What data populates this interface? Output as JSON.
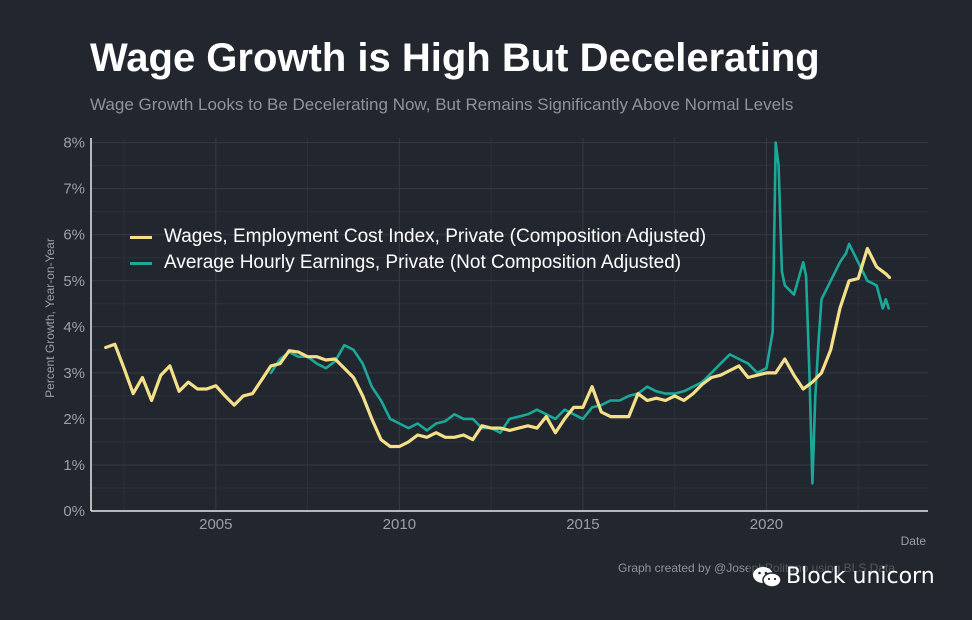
{
  "title": "Wage Growth is High But Decelerating",
  "subtitle": "Wage Growth Looks to Be Decelerating Now, But Remains Significantly Above Normal Levels",
  "credit": "Graph created by @JosephPolitano using BLS Data",
  "watermark": "Block unicorn",
  "colors": {
    "background": "#22262e",
    "eci": "#f5e08a",
    "ahe": "#1aa898",
    "grid": "#353a43",
    "axis": "#e8e8e8"
  },
  "chart_data": {
    "type": "line",
    "title": "Wage Growth is High But Decelerating",
    "xlabel": "Date",
    "ylabel": "Percent Growth, Year-on-Year",
    "xlim": [
      2001.6,
      2024.4
    ],
    "ylim": [
      0,
      8.1
    ],
    "x_ticks": [
      2005,
      2010,
      2015,
      2020
    ],
    "x_tick_labels": [
      "2005",
      "2010",
      "2015",
      "2020"
    ],
    "y_ticks": [
      0,
      1,
      2,
      3,
      4,
      5,
      6,
      7,
      8
    ],
    "y_tick_labels": [
      "0%",
      "1%",
      "2%",
      "3%",
      "4%",
      "5%",
      "6%",
      "7%",
      "8%"
    ],
    "legend_position": "upper-left",
    "series": [
      {
        "name": "Wages, Employment Cost Index, Private (Composition Adjusted)",
        "color": "#f5e08a",
        "x": [
          2002.0,
          2002.25,
          2002.5,
          2002.75,
          2003.0,
          2003.25,
          2003.5,
          2003.75,
          2004.0,
          2004.25,
          2004.5,
          2004.75,
          2005.0,
          2005.25,
          2005.5,
          2005.75,
          2006.0,
          2006.25,
          2006.5,
          2006.75,
          2007.0,
          2007.25,
          2007.5,
          2007.75,
          2008.0,
          2008.25,
          2008.5,
          2008.75,
          2009.0,
          2009.25,
          2009.5,
          2009.75,
          2010.0,
          2010.25,
          2010.5,
          2010.75,
          2011.0,
          2011.25,
          2011.5,
          2011.75,
          2012.0,
          2012.25,
          2012.5,
          2012.75,
          2013.0,
          2013.25,
          2013.5,
          2013.75,
          2014.0,
          2014.25,
          2014.5,
          2014.75,
          2015.0,
          2015.25,
          2015.5,
          2015.75,
          2016.0,
          2016.25,
          2016.5,
          2016.75,
          2017.0,
          2017.25,
          2017.5,
          2017.75,
          2018.0,
          2018.25,
          2018.5,
          2018.75,
          2019.0,
          2019.25,
          2019.5,
          2019.75,
          2020.0,
          2020.25,
          2020.5,
          2020.75,
          2021.0,
          2021.25,
          2021.5,
          2021.75,
          2022.0,
          2022.25,
          2022.5,
          2022.75,
          2023.0,
          2023.25
        ],
        "values": [
          3.55,
          3.62,
          3.1,
          2.55,
          2.9,
          2.4,
          2.95,
          3.15,
          2.6,
          2.8,
          2.65,
          2.65,
          2.72,
          2.5,
          2.3,
          2.5,
          2.55,
          2.85,
          3.15,
          3.2,
          3.48,
          3.45,
          3.35,
          3.35,
          3.28,
          3.3,
          3.1,
          2.9,
          2.5,
          2.0,
          1.55,
          1.4,
          1.4,
          1.5,
          1.65,
          1.6,
          1.7,
          1.6,
          1.6,
          1.65,
          1.55,
          1.85,
          1.8,
          1.8,
          1.75,
          1.8,
          1.85,
          1.8,
          2.05,
          1.7,
          2.0,
          2.25,
          2.25,
          2.7,
          2.15,
          2.05,
          2.05,
          2.05,
          2.55,
          2.4,
          2.45,
          2.4,
          2.5,
          2.4,
          2.55,
          2.75,
          2.9,
          2.95,
          3.05,
          3.15,
          2.9,
          2.95,
          3.0,
          3.0,
          3.3,
          2.95,
          2.65,
          2.8,
          3.0,
          3.5,
          4.4,
          5.0,
          5.05,
          5.7,
          5.3,
          5.15
        ],
        "end_x": 2023.35,
        "end_value": 5.07
      },
      {
        "name": "Average Hourly Earnings, Private (Not Composition Adjusted)",
        "color": "#1aa898",
        "x": [
          2006.5,
          2006.75,
          2007.0,
          2007.25,
          2007.5,
          2007.75,
          2008.0,
          2008.25,
          2008.5,
          2008.75,
          2009.0,
          2009.25,
          2009.5,
          2009.75,
          2010.0,
          2010.25,
          2010.5,
          2010.75,
          2011.0,
          2011.25,
          2011.5,
          2011.75,
          2012.0,
          2012.25,
          2012.5,
          2012.75,
          2013.0,
          2013.25,
          2013.5,
          2013.75,
          2014.0,
          2014.25,
          2014.5,
          2014.75,
          2015.0,
          2015.25,
          2015.5,
          2015.75,
          2016.0,
          2016.25,
          2016.5,
          2016.75,
          2017.0,
          2017.25,
          2017.5,
          2017.75,
          2018.0,
          2018.25,
          2018.5,
          2018.75,
          2019.0,
          2019.25,
          2019.5,
          2019.75,
          2020.0,
          2020.17,
          2020.25,
          2020.33,
          2020.42,
          2020.5,
          2020.75,
          2021.0,
          2021.08,
          2021.17,
          2021.25,
          2021.33,
          2021.42,
          2021.5,
          2021.75,
          2022.0,
          2022.17,
          2022.25,
          2022.5,
          2022.75,
          2023.0,
          2023.17,
          2023.25,
          2023.33
        ],
        "values": [
          3.0,
          3.3,
          3.45,
          3.35,
          3.35,
          3.2,
          3.1,
          3.25,
          3.6,
          3.5,
          3.2,
          2.7,
          2.4,
          2.0,
          1.9,
          1.8,
          1.9,
          1.75,
          1.9,
          1.95,
          2.1,
          2.0,
          2.0,
          1.8,
          1.8,
          1.7,
          2.0,
          2.05,
          2.1,
          2.2,
          2.1,
          2.0,
          2.2,
          2.1,
          2.0,
          2.25,
          2.3,
          2.4,
          2.4,
          2.5,
          2.55,
          2.7,
          2.6,
          2.55,
          2.55,
          2.6,
          2.7,
          2.8,
          3.0,
          3.2,
          3.4,
          3.3,
          3.2,
          3.0,
          3.1,
          3.9,
          8.0,
          7.5,
          5.2,
          4.9,
          4.7,
          5.4,
          5.1,
          3.0,
          0.6,
          2.5,
          3.7,
          4.6,
          5.0,
          5.4,
          5.6,
          5.8,
          5.4,
          5.0,
          4.9,
          4.4,
          4.6,
          4.4
        ]
      }
    ]
  }
}
